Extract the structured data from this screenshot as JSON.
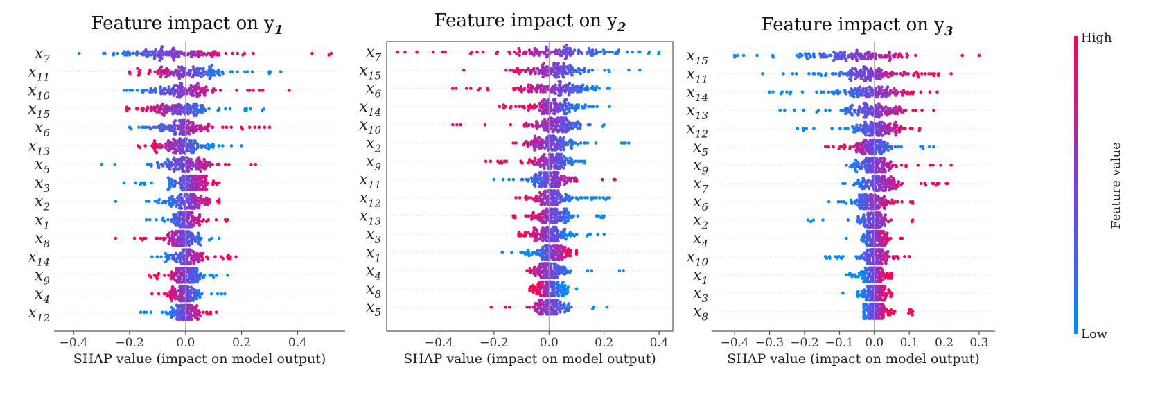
{
  "chart_data": [
    {
      "type": "scatter",
      "subtype": "shap-beeswarm",
      "title": "Feature impact on y",
      "title_sub": "1",
      "xlabel": "SHAP value (impact on model output)",
      "xlim": [
        -0.45,
        0.55
      ],
      "xticks": [
        -0.4,
        -0.2,
        0.0,
        0.2,
        0.4
      ],
      "xtick_labels": [
        "−0.4",
        "−0.2",
        "0.0",
        "0.2",
        "0.4"
      ],
      "features": [
        {
          "name": "x",
          "sub": "7",
          "min": -0.38,
          "max": 0.52,
          "center": -0.05,
          "spread": 0.1,
          "dir": 1
        },
        {
          "name": "x",
          "sub": "11",
          "min": -0.2,
          "max": 0.34,
          "center": 0.0,
          "spread": 0.08,
          "dir": -1
        },
        {
          "name": "x",
          "sub": "10",
          "min": -0.22,
          "max": 0.37,
          "center": -0.02,
          "spread": 0.06,
          "dir": 1
        },
        {
          "name": "x",
          "sub": "15",
          "min": -0.21,
          "max": 0.28,
          "center": -0.03,
          "spread": 0.06,
          "dir": -1
        },
        {
          "name": "x",
          "sub": "6",
          "min": -0.2,
          "max": 0.3,
          "center": -0.02,
          "spread": 0.06,
          "dir": 1
        },
        {
          "name": "x",
          "sub": "13",
          "min": -0.17,
          "max": 0.2,
          "center": -0.02,
          "spread": 0.05,
          "dir": -1
        },
        {
          "name": "x",
          "sub": "5",
          "min": -0.3,
          "max": 0.25,
          "center": 0.0,
          "spread": 0.05,
          "dir": 1
        },
        {
          "name": "x",
          "sub": "3",
          "min": -0.22,
          "max": 0.12,
          "center": 0.01,
          "spread": 0.04,
          "dir": 1
        },
        {
          "name": "x",
          "sub": "2",
          "min": -0.25,
          "max": 0.12,
          "center": 0.01,
          "spread": 0.04,
          "dir": 1
        },
        {
          "name": "x",
          "sub": "1",
          "min": -0.14,
          "max": 0.15,
          "center": 0.0,
          "spread": 0.03,
          "dir": 1
        },
        {
          "name": "x",
          "sub": "8",
          "min": -0.25,
          "max": 0.12,
          "center": -0.01,
          "spread": 0.03,
          "dir": -1
        },
        {
          "name": "x",
          "sub": "14",
          "min": -0.12,
          "max": 0.18,
          "center": 0.0,
          "spread": 0.03,
          "dir": 1
        },
        {
          "name": "x",
          "sub": "9",
          "min": -0.13,
          "max": 0.15,
          "center": 0.0,
          "spread": 0.03,
          "dir": -1
        },
        {
          "name": "x",
          "sub": "4",
          "min": -0.12,
          "max": 0.14,
          "center": 0.0,
          "spread": 0.03,
          "dir": -1
        },
        {
          "name": "x",
          "sub": "12",
          "min": -0.16,
          "max": 0.11,
          "center": 0.0,
          "spread": 0.03,
          "dir": 1
        }
      ]
    },
    {
      "type": "scatter",
      "subtype": "shap-beeswarm",
      "title": "Feature impact on y",
      "title_sub": "2",
      "xlabel": "SHAP value (impact on model output)",
      "xlim": [
        -0.57,
        0.43
      ],
      "xticks": [
        -0.4,
        -0.2,
        0.0,
        0.2,
        0.4
      ],
      "xtick_labels": [
        "−0.4",
        "−0.2",
        "0.0",
        "0.2",
        "0.4"
      ],
      "features": [
        {
          "name": "x",
          "sub": "7",
          "min": -0.55,
          "max": 0.4,
          "center": 0.05,
          "spread": 0.12,
          "dir": -1
        },
        {
          "name": "x",
          "sub": "15",
          "min": -0.31,
          "max": 0.33,
          "center": 0.02,
          "spread": 0.07,
          "dir": -1
        },
        {
          "name": "x",
          "sub": "6",
          "min": -0.35,
          "max": 0.22,
          "center": 0.03,
          "spread": 0.07,
          "dir": -1
        },
        {
          "name": "x",
          "sub": "14",
          "min": -0.18,
          "max": 0.22,
          "center": 0.02,
          "spread": 0.06,
          "dir": -1
        },
        {
          "name": "x",
          "sub": "10",
          "min": -0.35,
          "max": 0.2,
          "center": 0.03,
          "spread": 0.05,
          "dir": -1
        },
        {
          "name": "x",
          "sub": "2",
          "min": -0.13,
          "max": 0.29,
          "center": 0.0,
          "spread": 0.05,
          "dir": -1
        },
        {
          "name": "x",
          "sub": "9",
          "min": -0.23,
          "max": 0.13,
          "center": 0.01,
          "spread": 0.04,
          "dir": -1
        },
        {
          "name": "x",
          "sub": "11",
          "min": -0.2,
          "max": 0.24,
          "center": 0.01,
          "spread": 0.04,
          "dir": 1
        },
        {
          "name": "x",
          "sub": "12",
          "min": -0.12,
          "max": 0.22,
          "center": 0.01,
          "spread": 0.04,
          "dir": -1
        },
        {
          "name": "x",
          "sub": "13",
          "min": -0.13,
          "max": 0.2,
          "center": 0.01,
          "spread": 0.04,
          "dir": -1
        },
        {
          "name": "x",
          "sub": "3",
          "min": -0.11,
          "max": 0.2,
          "center": 0.0,
          "spread": 0.04,
          "dir": -1
        },
        {
          "name": "x",
          "sub": "1",
          "min": -0.17,
          "max": 0.1,
          "center": 0.01,
          "spread": 0.04,
          "dir": 1
        },
        {
          "name": "x",
          "sub": "4",
          "min": -0.08,
          "max": 0.27,
          "center": 0.0,
          "spread": 0.03,
          "dir": -1
        },
        {
          "name": "x",
          "sub": "8",
          "min": -0.07,
          "max": 0.1,
          "center": 0.0,
          "spread": 0.03,
          "dir": -1
        },
        {
          "name": "x",
          "sub": "5",
          "min": -0.21,
          "max": 0.21,
          "center": 0.0,
          "spread": 0.03,
          "dir": -1
        }
      ]
    },
    {
      "type": "scatter",
      "subtype": "shap-beeswarm",
      "title": "Feature impact on y",
      "title_sub": "3",
      "xlabel": "SHAP value (impact on model output)",
      "xlim": [
        -0.45,
        0.33
      ],
      "xticks": [
        -0.4,
        -0.3,
        -0.2,
        -0.1,
        0.0,
        0.1,
        0.2,
        0.3
      ],
      "xtick_labels": [
        "−0.4",
        "−0.3",
        "−0.2",
        "−0.1",
        "0.0",
        "0.1",
        "0.2",
        "0.3"
      ],
      "features": [
        {
          "name": "x",
          "sub": "15",
          "min": -0.4,
          "max": 0.3,
          "center": -0.05,
          "spread": 0.08,
          "dir": 1
        },
        {
          "name": "x",
          "sub": "11",
          "min": -0.32,
          "max": 0.22,
          "center": -0.02,
          "spread": 0.07,
          "dir": 1
        },
        {
          "name": "x",
          "sub": "14",
          "min": -0.3,
          "max": 0.18,
          "center": 0.0,
          "spread": 0.06,
          "dir": 1
        },
        {
          "name": "x",
          "sub": "13",
          "min": -0.27,
          "max": 0.17,
          "center": 0.0,
          "spread": 0.05,
          "dir": 1
        },
        {
          "name": "x",
          "sub": "12",
          "min": -0.22,
          "max": 0.13,
          "center": 0.01,
          "spread": 0.04,
          "dir": 1
        },
        {
          "name": "x",
          "sub": "5",
          "min": -0.14,
          "max": 0.17,
          "center": -0.01,
          "spread": 0.03,
          "dir": -1
        },
        {
          "name": "x",
          "sub": "9",
          "min": -0.08,
          "max": 0.22,
          "center": 0.0,
          "spread": 0.03,
          "dir": 1
        },
        {
          "name": "x",
          "sub": "7",
          "min": -0.09,
          "max": 0.21,
          "center": 0.01,
          "spread": 0.03,
          "dir": 1
        },
        {
          "name": "x",
          "sub": "6",
          "min": -0.13,
          "max": 0.11,
          "center": -0.01,
          "spread": 0.03,
          "dir": 1
        },
        {
          "name": "x",
          "sub": "2",
          "min": -0.19,
          "max": 0.11,
          "center": 0.0,
          "spread": 0.02,
          "dir": 1
        },
        {
          "name": "x",
          "sub": "4",
          "min": -0.08,
          "max": 0.08,
          "center": 0.0,
          "spread": 0.02,
          "dir": 1
        },
        {
          "name": "x",
          "sub": "10",
          "min": -0.14,
          "max": 0.1,
          "center": 0.0,
          "spread": 0.02,
          "dir": 1
        },
        {
          "name": "x",
          "sub": "1",
          "min": -0.08,
          "max": 0.05,
          "center": 0.0,
          "spread": 0.02,
          "dir": 1
        },
        {
          "name": "x",
          "sub": "3",
          "min": -0.09,
          "max": 0.05,
          "center": 0.0,
          "spread": 0.02,
          "dir": 1
        },
        {
          "name": "x",
          "sub": "8",
          "min": -0.03,
          "max": 0.11,
          "center": 0.0,
          "spread": 0.02,
          "dir": 1
        }
      ]
    }
  ],
  "colorbar": {
    "label": "Feature value",
    "high_label": "High",
    "low_label": "Low",
    "high_color": "#ff0052",
    "low_color": "#008bfb"
  }
}
